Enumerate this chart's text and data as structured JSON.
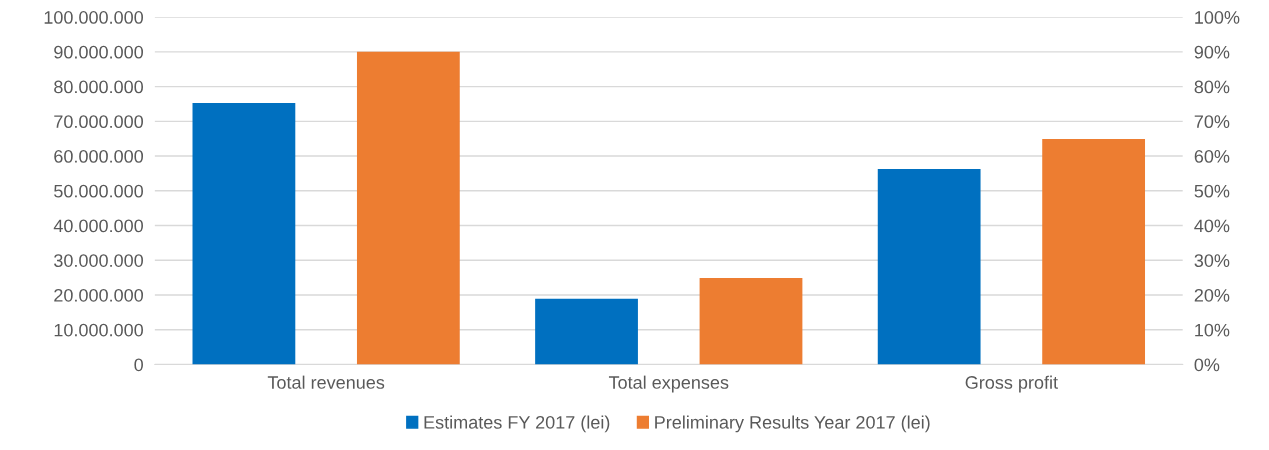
{
  "chart_data": {
    "type": "bar",
    "categories": [
      "Total revenues",
      "Total expenses",
      "Gross profit"
    ],
    "series": [
      {
        "name": "Estimates FY 2017 (lei)",
        "color": "#0070c0",
        "values": [
          75300000,
          18900000,
          56300000
        ]
      },
      {
        "name": "Preliminary Results Year 2017 (lei)",
        "color": "#ed7d31",
        "values": [
          90000000,
          24900000,
          64900000
        ]
      }
    ],
    "ylim": [
      0,
      100000000
    ],
    "yticks": [
      {
        "value": 0,
        "label": "0"
      },
      {
        "value": 10000000,
        "label": "10.000.000"
      },
      {
        "value": 20000000,
        "label": "20.000.000"
      },
      {
        "value": 30000000,
        "label": "30.000.000"
      },
      {
        "value": 40000000,
        "label": "40.000.000"
      },
      {
        "value": 50000000,
        "label": "50.000.000"
      },
      {
        "value": 60000000,
        "label": "60.000.000"
      },
      {
        "value": 70000000,
        "label": "70.000.000"
      },
      {
        "value": 80000000,
        "label": "80.000.000"
      },
      {
        "value": 90000000,
        "label": "90.000.000"
      },
      {
        "value": 100000000,
        "label": "100.000.000"
      }
    ],
    "y2lim": [
      0,
      100
    ],
    "y2ticks": [
      {
        "value": 0,
        "label": "0%"
      },
      {
        "value": 10,
        "label": "10%"
      },
      {
        "value": 20,
        "label": "20%"
      },
      {
        "value": 30,
        "label": "30%"
      },
      {
        "value": 40,
        "label": "40%"
      },
      {
        "value": 50,
        "label": "50%"
      },
      {
        "value": 60,
        "label": "60%"
      },
      {
        "value": 70,
        "label": "70%"
      },
      {
        "value": 80,
        "label": "80%"
      },
      {
        "value": 90,
        "label": "90%"
      },
      {
        "value": 100,
        "label": "100%"
      }
    ],
    "grid": "y",
    "legend": "bottom"
  }
}
